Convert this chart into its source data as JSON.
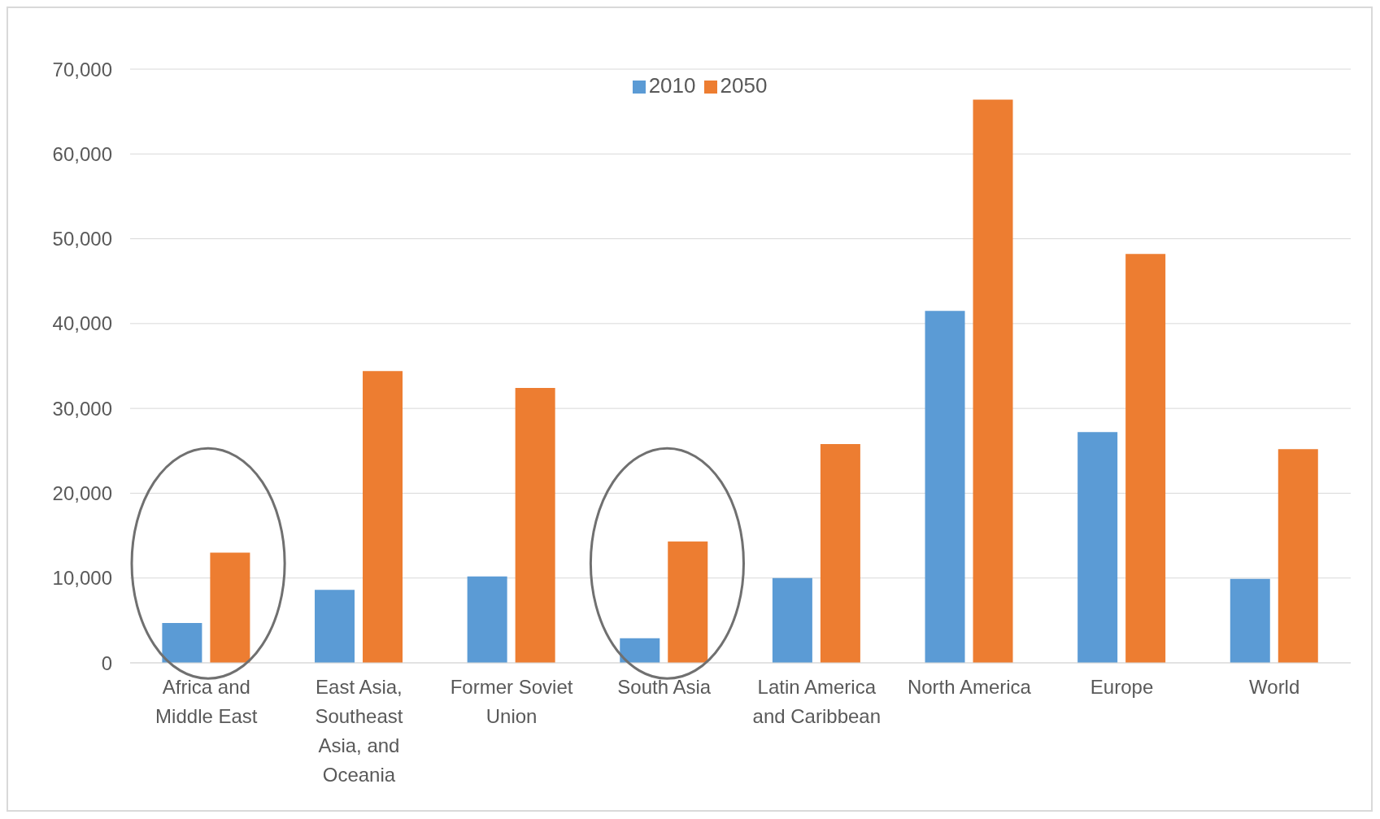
{
  "chart_data": {
    "type": "bar",
    "categories": [
      "Africa and Middle East",
      "East Asia, Southeast Asia, and Oceania",
      "Former Soviet Union",
      "South Asia",
      "Latin America and Caribbean",
      "North America",
      "Europe",
      "World"
    ],
    "series": [
      {
        "name": "2010",
        "color": "#5b9bd5",
        "values": [
          4700,
          8600,
          10200,
          2900,
          10000,
          41500,
          27200,
          9900
        ]
      },
      {
        "name": "2050",
        "color": "#ed7d31",
        "values": [
          13000,
          34400,
          32400,
          14300,
          25800,
          66400,
          48200,
          25200
        ]
      }
    ],
    "ylim": [
      0,
      70000
    ],
    "yticks": [
      {
        "value": 0,
        "label": "0"
      },
      {
        "value": 10000,
        "label": "10,000"
      },
      {
        "value": 20000,
        "label": "20,000"
      },
      {
        "value": 30000,
        "label": "30,000"
      },
      {
        "value": 40000,
        "label": "40,000"
      },
      {
        "value": 50000,
        "label": "50,000"
      },
      {
        "value": 60000,
        "label": "60,000"
      },
      {
        "value": 70000,
        "label": "70,000"
      }
    ],
    "grid": "y",
    "legend": "top"
  }
}
